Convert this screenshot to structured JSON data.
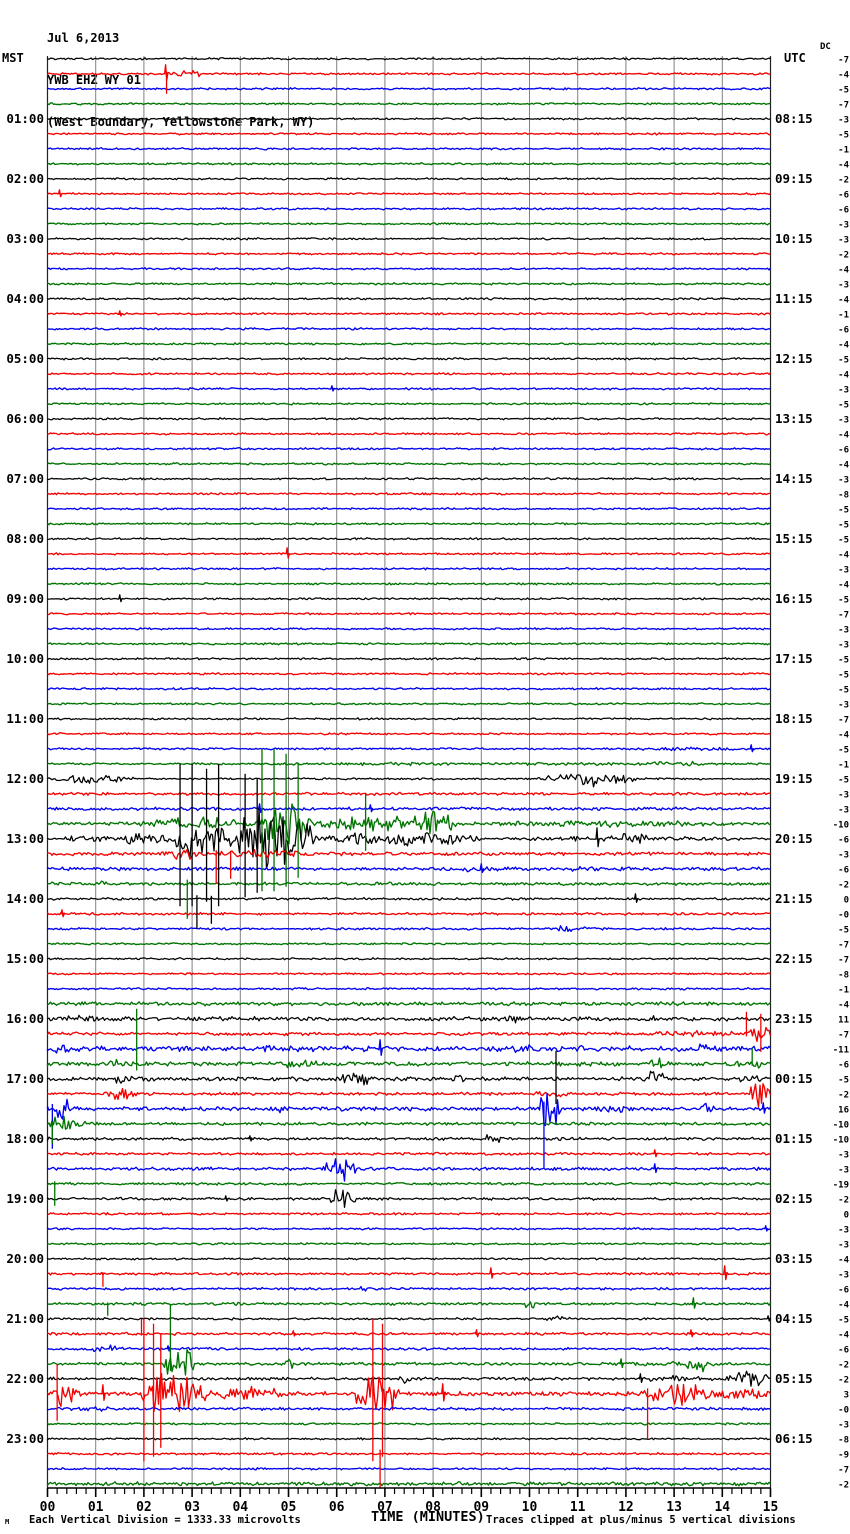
{
  "title": {
    "date": "Jul 6,2013",
    "station": "YWB EHZ WY 01",
    "location": "(West Boundary, Yellowstone Park, WY)"
  },
  "columns": {
    "left_tz": "MST",
    "right_tz": "UTC",
    "dc_label": "DC"
  },
  "footer": {
    "corner_mark": "M",
    "scale_note": "Each Vertical Division = 1333.33 microvolts",
    "x_axis_title": "TIME (MINUTES)",
    "clip_note": "Traces clipped at plus/minus 5 vertical divisions"
  },
  "chart_data": {
    "type": "line",
    "kind": "helicorder-seismogram",
    "minutes_per_line": 15,
    "lines": 96,
    "xlabel": "TIME (MINUTES)",
    "x_ticks": [
      "00",
      "01",
      "02",
      "03",
      "04",
      "05",
      "06",
      "07",
      "08",
      "09",
      "10",
      "11",
      "12",
      "13",
      "14",
      "15"
    ],
    "trace_color_cycle": [
      "black",
      "red",
      "blue",
      "green"
    ],
    "colors": {
      "black": "#000000",
      "red": "#f40000",
      "blue": "#0000f0",
      "green": "#007400",
      "grid": "#808080",
      "edge": "#222222"
    },
    "mst_hour_labels": [
      "01:00",
      "02:00",
      "03:00",
      "04:00",
      "05:00",
      "06:00",
      "07:00",
      "08:00",
      "09:00",
      "10:00",
      "11:00",
      "12:00",
      "13:00",
      "14:00",
      "15:00",
      "16:00",
      "17:00",
      "18:00",
      "19:00",
      "20:00",
      "21:00",
      "22:00",
      "23:00"
    ],
    "utc_hour_labels": [
      "08:15",
      "09:15",
      "10:15",
      "11:15",
      "12:15",
      "13:15",
      "14:15",
      "15:15",
      "16:15",
      "17:15",
      "18:15",
      "19:15",
      "20:15",
      "21:15",
      "22:15",
      "23:15",
      "00:15",
      "01:15",
      "02:15",
      "03:15",
      "04:15",
      "05:15",
      "06:15"
    ],
    "dc_offsets": [
      "-7",
      "-4",
      "-5",
      "-7",
      "-3",
      "-5",
      "-1",
      "-4",
      "-2",
      "-6",
      "-6",
      "-3",
      "-3",
      "-2",
      "-4",
      "-3",
      "-4",
      "-1",
      "-6",
      "-4",
      "-5",
      "-4",
      "-3",
      "-5",
      "-3",
      "-4",
      "-6",
      "-4",
      "-3",
      "-8",
      "-5",
      "-5",
      "-5",
      "-4",
      "-3",
      "-4",
      "-5",
      "-7",
      "-3",
      "-3",
      "-5",
      "-5",
      "-5",
      "-3",
      "-7",
      "-4",
      "-5",
      "-1",
      "-5",
      "-3",
      "-3",
      "-10",
      "-6",
      "-3",
      "-6",
      "-2",
      "0",
      "-0",
      "-5",
      "-7",
      "-7",
      "-8",
      "-1",
      "-4",
      "11",
      "-7",
      "-11",
      "-6",
      "-5",
      "-2",
      "16",
      "-10",
      "-10",
      "-3",
      "-3",
      "-19",
      "-2",
      "0",
      "-3",
      "-3",
      "-4",
      "-3",
      "-6",
      "-4",
      "-5",
      "-4",
      "-6",
      "-2",
      "-2",
      "3",
      "-0",
      "-3",
      "-8",
      "-9",
      "-7",
      "-2"
    ],
    "events_legend": "b=burst[startMin,durMin,ampPx]  s=spike[min,ampPx]  c=clippedSpike[min,ampPx,dir u|d|s]",
    "clip_divisions": 5,
    "events": {
      "2": [
        [
          "b",
          2.4,
          1.1,
          3
        ],
        [
          "s",
          2.45,
          9
        ],
        [
          "c",
          2.47,
          20,
          "d"
        ]
      ],
      "10": [
        [
          "s",
          0.25,
          4
        ]
      ],
      "18": [
        [
          "s",
          1.5,
          3
        ]
      ],
      "23": [
        [
          "s",
          5.9,
          3
        ]
      ],
      "34": [
        [
          "s",
          4.97,
          6
        ]
      ],
      "37": [
        [
          "s",
          1.5,
          4
        ]
      ],
      "47": [
        [
          "b",
          11.5,
          3.5,
          1.8
        ],
        [
          "s",
          14.6,
          4
        ]
      ],
      "48": [
        [
          "b",
          2,
          13,
          1.6
        ],
        [
          "b",
          12,
          2,
          2.2
        ]
      ],
      "49": [
        [
          "b",
          0.1,
          1.7,
          4.5
        ],
        [
          "b",
          10.3,
          1.9,
          7
        ]
      ],
      "50": [
        [
          "b",
          0,
          15,
          1.3
        ]
      ],
      "51": [
        [
          "b",
          0,
          15,
          1.4
        ],
        [
          "s",
          4.4,
          5
        ],
        [
          "s",
          6.7,
          4
        ]
      ],
      "52": [
        [
          "b",
          0,
          15,
          1.5
        ],
        [
          "b",
          1.8,
          2.5,
          6
        ],
        [
          "b",
          4.3,
          1.2,
          20
        ],
        [
          "c",
          4.45,
          75,
          "s"
        ],
        [
          "c",
          4.7,
          75,
          "s"
        ],
        [
          "c",
          4.95,
          70,
          "s"
        ],
        [
          "c",
          5.2,
          60,
          "s"
        ],
        [
          "b",
          5.5,
          3,
          8
        ],
        [
          "c",
          6.6,
          30,
          "s"
        ],
        [
          "b",
          7.6,
          0.8,
          14
        ],
        [
          "b",
          8.4,
          6.6,
          3
        ]
      ],
      "53": [
        [
          "b",
          0,
          1.5,
          3
        ],
        [
          "b",
          1.5,
          1.2,
          8
        ],
        [
          "b",
          2.6,
          1.1,
          25
        ],
        [
          "c",
          2.75,
          75,
          "s"
        ],
        [
          "c",
          3.0,
          75,
          "s"
        ],
        [
          "c",
          3.3,
          70,
          "s"
        ],
        [
          "c",
          3.55,
          75,
          "s"
        ],
        [
          "b",
          3.6,
          2,
          28
        ],
        [
          "c",
          4.1,
          65,
          "s"
        ],
        [
          "c",
          4.35,
          60,
          "s"
        ],
        [
          "b",
          5.6,
          3.4,
          7
        ],
        [
          "b",
          9,
          6,
          2.5
        ],
        [
          "s",
          11.4,
          11
        ],
        [
          "b",
          11.8,
          0.8,
          7
        ]
      ],
      "54": [
        [
          "b",
          0,
          15,
          1.6
        ],
        [
          "b",
          2.3,
          1,
          5
        ],
        [
          "b",
          3.3,
          2.3,
          4
        ],
        [
          "c",
          3.5,
          30,
          "d"
        ],
        [
          "c",
          3.8,
          25,
          "d"
        ]
      ],
      "55": [
        [
          "b",
          0,
          15,
          1.5
        ],
        [
          "b",
          8.3,
          1.3,
          3
        ],
        [
          "s",
          9.0,
          5
        ],
        [
          "b",
          10.6,
          1.7,
          3
        ]
      ],
      "56": [
        [
          "b",
          0,
          15,
          1.4
        ],
        [
          "b",
          0.8,
          0.8,
          3
        ],
        [
          "c",
          2.9,
          35,
          "d"
        ]
      ],
      "57": [
        [
          "b",
          0,
          15,
          1.1
        ],
        [
          "c",
          3.1,
          30,
          "d"
        ],
        [
          "c",
          3.4,
          25,
          "d"
        ],
        [
          "s",
          12.2,
          5
        ]
      ],
      "58": [
        [
          "b",
          0,
          15,
          1.1
        ],
        [
          "s",
          0.3,
          4
        ]
      ],
      "59": [
        [
          "b",
          0,
          15,
          1.0
        ],
        [
          "b",
          10.2,
          1.2,
          3
        ]
      ],
      "64": [
        [
          "b",
          0,
          15,
          1.7
        ]
      ],
      "65": [
        [
          "b",
          0,
          15,
          1.9
        ],
        [
          "b",
          0.3,
          0.9,
          4.5
        ],
        [
          "b",
          9.4,
          0.5,
          4
        ],
        [
          "b",
          12.4,
          0.5,
          3.5
        ]
      ],
      "66": [
        [
          "b",
          0,
          15,
          1.5
        ],
        [
          "b",
          12.4,
          2.1,
          3.5
        ],
        [
          "b",
          14.55,
          0.45,
          14
        ],
        [
          "c",
          14.5,
          22,
          "u"
        ],
        [
          "c",
          14.8,
          20,
          "s"
        ]
      ],
      "67": [
        [
          "b",
          0,
          15,
          2.4
        ],
        [
          "b",
          0,
          0.5,
          5
        ],
        [
          "b",
          2.7,
          0.5,
          5
        ],
        [
          "b",
          4.4,
          0.4,
          4
        ],
        [
          "s",
          6.9,
          9
        ],
        [
          "b",
          9.5,
          0.7,
          5
        ],
        [
          "b",
          10.8,
          0.5,
          5
        ],
        [
          "b",
          13.4,
          0.5,
          5
        ]
      ],
      "68": [
        [
          "b",
          0,
          15,
          1.9
        ],
        [
          "b",
          1.1,
          0.6,
          5
        ],
        [
          "c",
          1.85,
          55,
          "u"
        ],
        [
          "b",
          4.7,
          1,
          4.5
        ],
        [
          "b",
          12.45,
          0.4,
          8
        ],
        [
          "b",
          14.2,
          0.8,
          5
        ],
        [
          "c",
          14.62,
          16,
          "u"
        ]
      ],
      "69": [
        [
          "b",
          0,
          15,
          1.8
        ],
        [
          "b",
          1.0,
          1.3,
          4.5
        ],
        [
          "b",
          6.1,
          0.6,
          9
        ],
        [
          "b",
          8.2,
          0.6,
          4
        ],
        [
          "c",
          10.55,
          28,
          "s"
        ],
        [
          "b",
          12.35,
          0.6,
          9
        ],
        [
          "b",
          14.3,
          0.6,
          5
        ]
      ],
      "70": [
        [
          "b",
          0,
          15,
          1.4
        ],
        [
          "b",
          1.2,
          0.7,
          5.5
        ],
        [
          "b",
          9.8,
          1.4,
          2.5
        ],
        [
          "b",
          14.55,
          0.45,
          14
        ]
      ],
      "71": [
        [
          "b",
          0,
          15,
          1.8
        ],
        [
          "b",
          0,
          0.5,
          12
        ],
        [
          "c",
          0.1,
          40,
          "d"
        ],
        [
          "b",
          4.5,
          0.6,
          3.5
        ],
        [
          "b",
          10.15,
          0.5,
          20
        ],
        [
          "c",
          10.3,
          60,
          "d"
        ],
        [
          "b",
          11.3,
          0.8,
          3.5
        ],
        [
          "b",
          13.5,
          0.4,
          5
        ],
        [
          "s",
          14.85,
          6
        ]
      ],
      "72": [
        [
          "b",
          0,
          15,
          1.4
        ],
        [
          "b",
          0,
          0.8,
          9
        ],
        [
          "c",
          0.1,
          20,
          "d"
        ]
      ],
      "73": [
        [
          "b",
          0,
          15,
          1.4
        ],
        [
          "s",
          4.2,
          3
        ],
        [
          "b",
          8.8,
          0.8,
          4.5
        ]
      ],
      "74": [
        [
          "b",
          0,
          15,
          1.2
        ],
        [
          "s",
          12.6,
          4
        ]
      ],
      "75": [
        [
          "b",
          0,
          15,
          1.4
        ],
        [
          "b",
          5.7,
          0.7,
          12
        ],
        [
          "s",
          12.6,
          5
        ]
      ],
      "76": [
        [
          "b",
          0,
          15,
          1.2
        ],
        [
          "c",
          0.15,
          22,
          "d"
        ]
      ],
      "77": [
        [
          "b",
          0,
          15,
          1.2
        ],
        [
          "s",
          3.7,
          3
        ],
        [
          "b",
          5.85,
          0.55,
          10
        ]
      ],
      "78": [
        [
          "b",
          0,
          15,
          1.0
        ]
      ],
      "79": [
        [
          "s",
          14.9,
          3
        ]
      ],
      "82": [
        [
          "b",
          0,
          15,
          1.1
        ],
        [
          "c",
          1.15,
          13,
          "d"
        ],
        [
          "s",
          9.2,
          6
        ],
        [
          "s",
          14.05,
          8
        ]
      ],
      "83": [
        [
          "b",
          0,
          15,
          1.1
        ],
        [
          "b",
          6.35,
          0.35,
          4
        ]
      ],
      "84": [
        [
          "b",
          0,
          15,
          1.2
        ],
        [
          "c",
          1.25,
          12,
          "d"
        ],
        [
          "b",
          9.9,
          0.3,
          9
        ],
        [
          "s",
          13.4,
          6
        ]
      ],
      "85": [
        [
          "b",
          0,
          15,
          1.0
        ],
        [
          "b",
          10.35,
          0.5,
          4
        ],
        [
          "s",
          14.95,
          3
        ]
      ],
      "86": [
        [
          "b",
          0,
          15,
          1.2
        ],
        [
          "c",
          1.95,
          15,
          "u"
        ],
        [
          "s",
          5.1,
          3
        ],
        [
          "s",
          8.9,
          4
        ],
        [
          "s",
          13.35,
          4
        ]
      ],
      "87": [
        [
          "b",
          0,
          15,
          1.2
        ],
        [
          "b",
          0.7,
          1,
          3.5
        ],
        [
          "s",
          2.5,
          3
        ]
      ],
      "88": [
        [
          "b",
          0,
          15,
          1.3
        ],
        [
          "b",
          2.4,
          0.7,
          18
        ],
        [
          "c",
          2.55,
          60,
          "u"
        ],
        [
          "b",
          4.85,
          0.25,
          8
        ],
        [
          "s",
          11.9,
          5
        ],
        [
          "b",
          11.5,
          3.5,
          2.2
        ],
        [
          "b",
          13.25,
          0.5,
          11
        ]
      ],
      "89": [
        [
          "b",
          0,
          15,
          1.4
        ],
        [
          "b",
          7.2,
          0.4,
          4
        ],
        [
          "b",
          12,
          2,
          3
        ],
        [
          "s",
          12.3,
          5
        ],
        [
          "b",
          14,
          1,
          8
        ]
      ],
      "90": [
        [
          "b",
          0,
          15,
          2.0
        ],
        [
          "b",
          0,
          0.7,
          14
        ],
        [
          "c",
          0.2,
          30,
          "s"
        ],
        [
          "s",
          1.15,
          9
        ],
        [
          "b",
          1.9,
          1.4,
          22
        ],
        [
          "c",
          2.0,
          75,
          "s"
        ],
        [
          "c",
          2.2,
          70,
          "s"
        ],
        [
          "c",
          2.35,
          60,
          "s"
        ],
        [
          "b",
          3.3,
          1.7,
          7
        ],
        [
          "b",
          6.4,
          0.9,
          25
        ],
        [
          "c",
          6.75,
          75,
          "s"
        ],
        [
          "c",
          6.95,
          70,
          "s"
        ],
        [
          "s",
          8.2,
          10
        ],
        [
          "b",
          12.3,
          1.5,
          13
        ],
        [
          "c",
          12.45,
          45,
          "d"
        ],
        [
          "b",
          13.8,
          1.2,
          7
        ]
      ],
      "91": [
        [
          "b",
          0,
          15,
          1.3
        ],
        [
          "b",
          0,
          2,
          2
        ]
      ],
      "94": [
        [
          "b",
          0,
          15,
          1.0
        ],
        [
          "c",
          6.9,
          35,
          "d"
        ]
      ],
      "96": [
        [
          "b",
          0,
          15,
          1.7
        ]
      ]
    }
  }
}
